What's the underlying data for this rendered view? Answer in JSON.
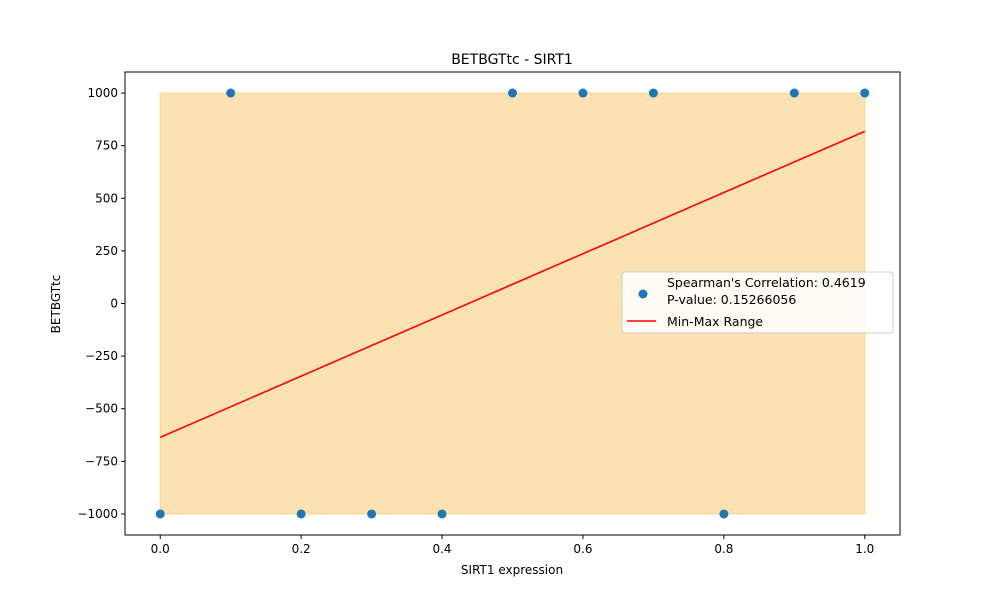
{
  "chart_data": {
    "type": "scatter",
    "title": "BETBGTtc - SIRT1",
    "xlabel": "SIRT1 expression",
    "ylabel": "BETBGTtc",
    "xlim": [
      -0.05,
      1.05
    ],
    "ylim": [
      -1100,
      1100
    ],
    "x_ticks": [
      0.0,
      0.2,
      0.4,
      0.6,
      0.8,
      1.0
    ],
    "x_tick_labels": [
      "0.0",
      "0.2",
      "0.4",
      "0.6",
      "0.8",
      "1.0"
    ],
    "y_ticks": [
      -1000,
      -750,
      -500,
      -250,
      0,
      250,
      500,
      750,
      1000
    ],
    "y_tick_labels": [
      "−1000",
      "−750",
      "−500",
      "−250",
      "0",
      "250",
      "500",
      "750",
      "1000"
    ],
    "grid": false,
    "legend_position": "center-right",
    "series": [
      {
        "name": "Spearman's Correlation: 0.4619\nP-value: 0.15266056",
        "kind": "scatter",
        "color": "#1f77b4",
        "x": [
          0.0,
          0.1,
          0.2,
          0.3,
          0.4,
          0.5,
          0.6,
          0.7,
          0.8,
          0.9,
          1.0
        ],
        "y": [
          -1000,
          1000,
          -1000,
          -1000,
          -1000,
          1000,
          1000,
          1000,
          -1000,
          1000,
          1000
        ]
      },
      {
        "name": "Min-Max Range",
        "kind": "line",
        "color": "#ff0000",
        "x": [
          0.0,
          1.0
        ],
        "y": [
          -636,
          818
        ]
      }
    ],
    "range_band": {
      "x": [
        0.0,
        1.0
      ],
      "y": [
        -1000,
        1000
      ],
      "color": "#fbd28a"
    }
  }
}
